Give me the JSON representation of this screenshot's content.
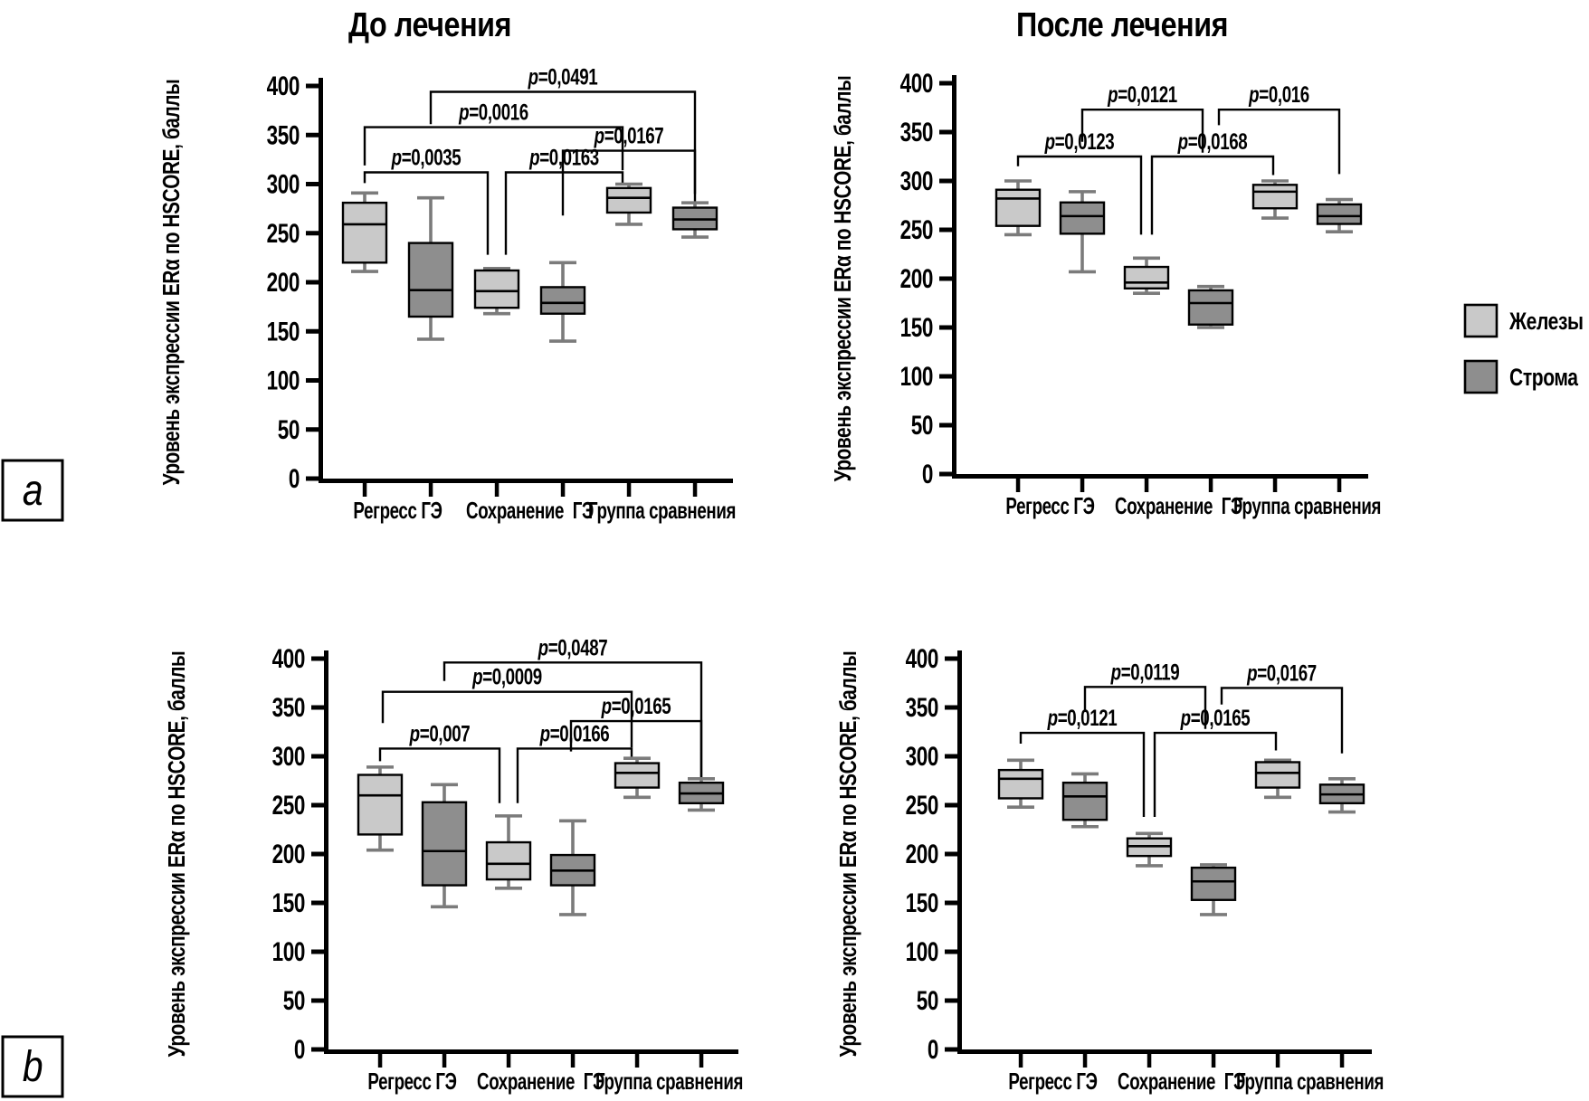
{
  "figure": {
    "titles": {
      "before": "До лечения",
      "after": "После лечения"
    },
    "y_axis_label": "Уровень экспрессии ERα по HSCORE, баллы",
    "x_categories": [
      "Регресс ГЭ",
      "Сохранение  ГЭ",
      "Группа сравнения"
    ],
    "panel_labels": [
      "a",
      "b"
    ],
    "legend": [
      {
        "label": "Железы",
        "color": "#c9c9c9"
      },
      {
        "label": "Строма",
        "color": "#8e8e8e"
      }
    ],
    "colors": {
      "glands_fill": "#c9c9c9",
      "stroma_fill": "#8e8e8e",
      "box_border": "#000000",
      "whisker": "#7b7b7b",
      "bracket": "#000000",
      "background": "#ffffff"
    }
  },
  "chart_data": [
    {
      "type": "boxplot",
      "panel": "a",
      "position": "top-left",
      "title": "До лечения",
      "ylabel": "Уровень экспрессии ERα по HSCORE, баллы",
      "ylim": [
        0,
        400
      ],
      "ytick_step": 50,
      "grid": false,
      "categories": [
        "Регресс ГЭ",
        "Сохранение  ГЭ",
        "Группа сравнения"
      ],
      "stats_order": [
        "min",
        "q1",
        "median",
        "q3",
        "max"
      ],
      "series": [
        {
          "name": "Железы",
          "boxes": [
            [
              211,
              220,
              259,
              281,
              291
            ],
            [
              168,
              174,
              191,
              212,
              214
            ],
            [
              259,
              271,
              286,
              296,
              300
            ]
          ]
        },
        {
          "name": "Строма",
          "boxes": [
            [
              142,
              165,
              192,
              240,
              286
            ],
            [
              140,
              168,
              179,
              195,
              220
            ],
            [
              246,
              254,
              264,
              276,
              281
            ]
          ]
        }
      ],
      "significance": [
        {
          "label": "p=0,0035",
          "i": 0,
          "j": 2,
          "y": 312,
          "d1": 11,
          "d2": 84,
          "xo1": 0,
          "xo2": -10
        },
        {
          "label": "p=0,0016",
          "i": 0,
          "j": 4,
          "y": 358,
          "d1": 39,
          "d2": 44,
          "xo1": 0,
          "xo2": -7
        },
        {
          "label": "p=0,0491",
          "i": 1,
          "j": 5,
          "y": 394,
          "d1": 33,
          "d2": 112,
          "xo1": 0,
          "xo2": 0
        },
        {
          "label": "p=0,0163",
          "i": 2,
          "j": 4,
          "y": 312,
          "d1": 84,
          "d2": 12,
          "xo1": 10,
          "xo2": -7
        },
        {
          "label": "p=0,0167",
          "i": 3,
          "j": 5,
          "y": 334,
          "d1": 66,
          "d2": 44,
          "xo1": 0,
          "xo2": 0
        }
      ]
    },
    {
      "type": "boxplot",
      "panel": "a",
      "position": "top-right",
      "title": "После лечения",
      "ylabel": "Уровень экспрессии ERα по HSCORE, баллы",
      "ylim": [
        0,
        400
      ],
      "ytick_step": 50,
      "grid": false,
      "categories": [
        "Регресс ГЭ",
        "Сохранение  ГЭ",
        "Группа сравнения"
      ],
      "stats_order": [
        "min",
        "q1",
        "median",
        "q3",
        "max"
      ],
      "series": [
        {
          "name": "Железы",
          "boxes": [
            [
              245,
              254,
              282,
              291,
              300
            ],
            [
              185,
              190,
              196,
              212,
              221
            ],
            [
              262,
              272,
              289,
              296,
              300
            ]
          ]
        },
        {
          "name": "Строма",
          "boxes": [
            [
              207,
              246,
              264,
              278,
              289
            ],
            [
              150,
              153,
              175,
              188,
              192
            ],
            [
              248,
              256,
              264,
              276,
              281
            ]
          ]
        }
      ],
      "significance": [
        {
          "label": "p=0,0123",
          "i": 0,
          "j": 2,
          "y": 325,
          "d1": 10,
          "d2": 80,
          "xo1": 0,
          "xo2": -6
        },
        {
          "label": "p=0,0168",
          "i": 2,
          "j": 4,
          "y": 325,
          "d1": 80,
          "d2": 19,
          "xo1": 6,
          "xo2": -2
        },
        {
          "label": "p=0,0121",
          "i": 1,
          "j": 3,
          "y": 373,
          "d1": 33,
          "d2": 44,
          "xo1": 0,
          "xo2": -9
        },
        {
          "label": "p=0,016",
          "i": 3,
          "j": 5,
          "y": 373,
          "d1": 16,
          "d2": 66,
          "xo1": 9,
          "xo2": 0
        }
      ]
    },
    {
      "type": "boxplot",
      "panel": "b",
      "position": "bottom-left",
      "title": "",
      "ylabel": "Уровень экспрессии ERα по HSCORE, баллы",
      "ylim": [
        0,
        400
      ],
      "ytick_step": 50,
      "grid": false,
      "categories": [
        "Регресс ГЭ",
        "Сохранение  ГЭ",
        "Группа сравнения"
      ],
      "stats_order": [
        "min",
        "q1",
        "median",
        "q3",
        "max"
      ],
      "series": [
        {
          "name": "Железы",
          "boxes": [
            [
              204,
              220,
              260,
              281,
              289
            ],
            [
              165,
              174,
              190,
              212,
              239
            ],
            [
              258,
              268,
              283,
              293,
              298
            ]
          ]
        },
        {
          "name": "Строма",
          "boxes": [
            [
              146,
              168,
              203,
              253,
              271
            ],
            [
              138,
              168,
              183,
              199,
              234
            ],
            [
              245,
              252,
              262,
              273,
              277
            ]
          ]
        }
      ],
      "significance": [
        {
          "label": "p=0,007",
          "i": 0,
          "j": 2,
          "y": 308,
          "d1": 13,
          "d2": 56,
          "xo1": 0,
          "xo2": -10
        },
        {
          "label": "p=0,0009",
          "i": 0,
          "j": 4,
          "y": 366,
          "d1": 32,
          "d2": 57,
          "xo1": 3,
          "xo2": -6
        },
        {
          "label": "p=0,0487",
          "i": 1,
          "j": 5,
          "y": 396,
          "d1": 19,
          "d2": 118,
          "xo1": 0,
          "xo2": 0
        },
        {
          "label": "p=0,0166",
          "i": 2,
          "j": 4,
          "y": 308,
          "d1": 56,
          "d2": 11,
          "xo1": 10,
          "xo2": -6
        },
        {
          "label": "p=0,0165",
          "i": 3,
          "j": 5,
          "y": 336,
          "d1": 31,
          "d2": 59,
          "xo1": -2,
          "xo2": 0
        }
      ]
    },
    {
      "type": "boxplot",
      "panel": "b",
      "position": "bottom-right",
      "title": "",
      "ylabel": "Уровень экспрессии ERα по HSCORE, баллы",
      "ylim": [
        0,
        400
      ],
      "ytick_step": 50,
      "grid": false,
      "categories": [
        "Регресс ГЭ",
        "Сохранение  ГЭ",
        "Группа сравнения"
      ],
      "stats_order": [
        "min",
        "q1",
        "median",
        "q3",
        "max"
      ],
      "series": [
        {
          "name": "Железы",
          "boxes": [
            [
              248,
              257,
              277,
              286,
              296
            ],
            [
              188,
              198,
              208,
              216,
              221
            ],
            [
              258,
              268,
              283,
              294,
              296
            ]
          ]
        },
        {
          "name": "Строма",
          "boxes": [
            [
              228,
              235,
              259,
              273,
              282
            ],
            [
              138,
              153,
              172,
              186,
              189
            ],
            [
              243,
              252,
              261,
              271,
              277
            ]
          ]
        }
      ],
      "significance": [
        {
          "label": "p=0,0121",
          "i": 0,
          "j": 2,
          "y": 324,
          "d1": 11,
          "d2": 86,
          "xo1": 0,
          "xo2": -6
        },
        {
          "label": "p=0,0165",
          "i": 2,
          "j": 4,
          "y": 324,
          "d1": 86,
          "d2": 18,
          "xo1": 6,
          "xo2": -2
        },
        {
          "label": "p=0,0119",
          "i": 1,
          "j": 3,
          "y": 371,
          "d1": 24,
          "d2": 43,
          "xo1": 0,
          "xo2": -9
        },
        {
          "label": "p=0,0167",
          "i": 3,
          "j": 5,
          "y": 370,
          "d1": 17,
          "d2": 67,
          "xo1": 9,
          "xo2": 0
        }
      ]
    }
  ]
}
